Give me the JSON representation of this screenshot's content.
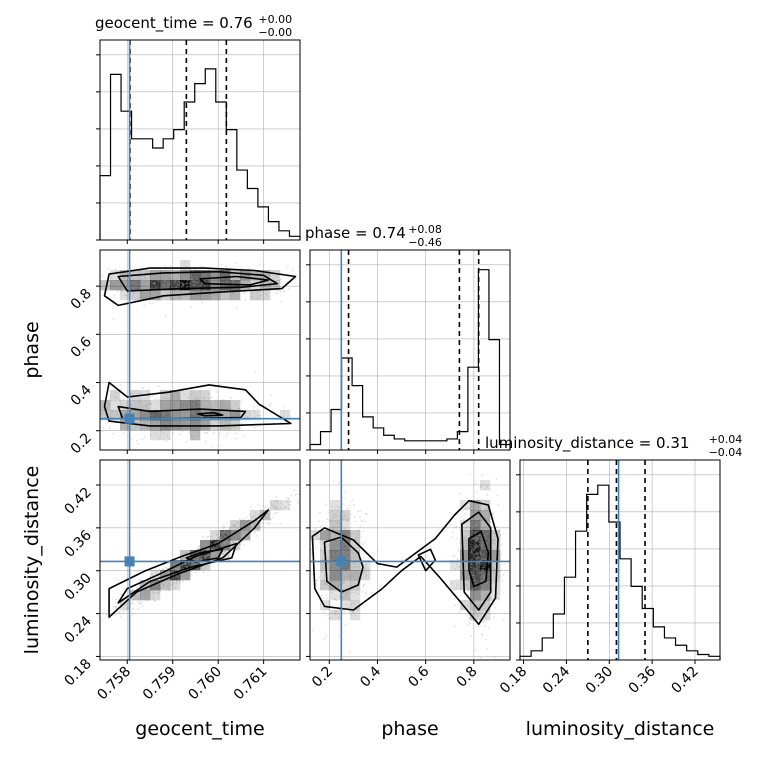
{
  "chart_data": {
    "type": "corner",
    "grid": true,
    "parameters": [
      {
        "name": "geocent_time",
        "label": "geocent_time",
        "truth": 0.75805,
        "range": [
          0.7574,
          0.7618
        ],
        "ticks": [
          0.758,
          0.759,
          0.76,
          0.761
        ],
        "tick_labels": [
          "0.758",
          "0.759",
          "0.760",
          "0.761"
        ],
        "title": "geocent_time = 0.76",
        "title_sup": "+0.00",
        "title_sub": "−0.00",
        "quantiles": [
          0.75806,
          0.7593,
          0.76018
        ],
        "hist": [
          0.35,
          0.9,
          0.7,
          0.55,
          0.55,
          0.5,
          0.55,
          0.6,
          0.75,
          0.85,
          0.93,
          0.75,
          0.6,
          0.38,
          0.28,
          0.18,
          0.1,
          0.05,
          0.02
        ]
      },
      {
        "name": "phase",
        "label": "phase",
        "truth": 0.25,
        "range": [
          0.12,
          0.95
        ],
        "ticks": [
          0.2,
          0.4,
          0.6,
          0.8
        ],
        "tick_labels": [
          "0.2",
          "0.4",
          "0.6",
          "0.8"
        ],
        "title": "phase = 0.74",
        "title_sup": "+0.08",
        "title_sub": "−0.46",
        "quantiles": [
          0.28,
          0.74,
          0.82
        ],
        "hist": [
          0.03,
          0.1,
          0.22,
          0.5,
          0.35,
          0.18,
          0.12,
          0.08,
          0.06,
          0.05,
          0.05,
          0.05,
          0.05,
          0.06,
          0.1,
          0.45,
          0.98,
          0.6,
          0.03
        ]
      },
      {
        "name": "luminosity_distance",
        "label": "luminosity_distance",
        "truth": 0.313,
        "range": [
          0.175,
          0.455
        ],
        "ticks": [
          0.18,
          0.24,
          0.3,
          0.36,
          0.42
        ],
        "tick_labels": [
          "0.18",
          "0.24",
          "0.30",
          "0.36",
          "0.42"
        ],
        "title": "luminosity_distance = 0.31",
        "title_sup": "+0.04",
        "title_sub": "−0.04",
        "quantiles": [
          0.27,
          0.31,
          0.35
        ],
        "hist": [
          0.02,
          0.05,
          0.12,
          0.25,
          0.45,
          0.7,
          0.9,
          0.95,
          0.75,
          0.55,
          0.4,
          0.28,
          0.18,
          0.12,
          0.08,
          0.05,
          0.03,
          0.02
        ]
      }
    ],
    "pairs": [
      {
        "x": "geocent_time",
        "y": "phase",
        "modes": [
          {
            "cx": 0.7594,
            "cy": 0.81,
            "sx": 0.0011,
            "sy": 0.035,
            "rho": 0.0,
            "w": 0.52
          },
          {
            "cx": 0.759,
            "cy": 0.27,
            "sx": 0.0011,
            "sy": 0.05,
            "rho": 0.0,
            "w": 0.48
          }
        ],
        "contours": [
          [
            [
              0.7576,
              0.85
            ],
            [
              0.7585,
              0.875
            ],
            [
              0.7597,
              0.875
            ],
            [
              0.7608,
              0.865
            ],
            [
              0.7617,
              0.84
            ],
            [
              0.7614,
              0.79
            ],
            [
              0.76,
              0.775
            ],
            [
              0.7588,
              0.76
            ],
            [
              0.7578,
              0.72
            ],
            [
              0.7575,
              0.76
            ],
            [
              0.7576,
              0.85
            ]
          ],
          [
            [
              0.7578,
              0.84
            ],
            [
              0.7588,
              0.855
            ],
            [
              0.76,
              0.86
            ],
            [
              0.761,
              0.845
            ],
            [
              0.7613,
              0.81
            ],
            [
              0.7605,
              0.795
            ],
            [
              0.7592,
              0.79
            ],
            [
              0.758,
              0.78
            ],
            [
              0.7578,
              0.84
            ]
          ],
          [
            [
              0.7596,
              0.83
            ],
            [
              0.7604,
              0.84
            ],
            [
              0.7611,
              0.825
            ],
            [
              0.7607,
              0.805
            ],
            [
              0.7597,
              0.81
            ],
            [
              0.7596,
              0.83
            ]
          ],
          [
            [
              0.7576,
              0.4
            ],
            [
              0.758,
              0.34
            ],
            [
              0.7589,
              0.36
            ],
            [
              0.7598,
              0.39
            ],
            [
              0.7606,
              0.37
            ],
            [
              0.7609,
              0.31
            ],
            [
              0.7616,
              0.23
            ],
            [
              0.76,
              0.22
            ],
            [
              0.7585,
              0.22
            ],
            [
              0.7576,
              0.24
            ],
            [
              0.7575,
              0.3
            ],
            [
              0.7576,
              0.4
            ]
          ],
          [
            [
              0.7578,
              0.3
            ],
            [
              0.7585,
              0.28
            ],
            [
              0.7596,
              0.29
            ],
            [
              0.7606,
              0.28
            ],
            [
              0.7605,
              0.255
            ],
            [
              0.759,
              0.25
            ],
            [
              0.7579,
              0.25
            ],
            [
              0.7578,
              0.3
            ]
          ],
          [
            [
              0.75955,
              0.27
            ],
            [
              0.7599,
              0.275
            ],
            [
              0.7601,
              0.265
            ],
            [
              0.7597,
              0.262
            ],
            [
              0.75955,
              0.27
            ]
          ]
        ]
      },
      {
        "x": "geocent_time",
        "y": "luminosity_distance",
        "modes": [
          {
            "cx": 0.7596,
            "cy": 0.32,
            "sx": 0.00085,
            "sy": 0.035,
            "rho": 0.97,
            "w": 1.0
          }
        ],
        "contours": [
          [
            [
              0.7576,
              0.235
            ],
            [
              0.7576,
              0.275
            ],
            [
              0.7584,
              0.3
            ],
            [
              0.7592,
              0.32
            ],
            [
              0.76,
              0.338
            ],
            [
              0.7608,
              0.37
            ],
            [
              0.7611,
              0.385
            ],
            [
              0.7608,
              0.36
            ],
            [
              0.7601,
              0.318
            ],
            [
              0.7591,
              0.295
            ],
            [
              0.7582,
              0.27
            ],
            [
              0.7576,
              0.235
            ]
          ],
          [
            [
              0.7578,
              0.255
            ],
            [
              0.758,
              0.275
            ],
            [
              0.7587,
              0.295
            ],
            [
              0.7595,
              0.32
            ],
            [
              0.7604,
              0.338
            ],
            [
              0.7603,
              0.318
            ],
            [
              0.7594,
              0.305
            ],
            [
              0.7585,
              0.285
            ],
            [
              0.7578,
              0.255
            ]
          ],
          [
            [
              0.7593,
              0.318
            ],
            [
              0.7596,
              0.325
            ],
            [
              0.7601,
              0.33
            ],
            [
              0.76,
              0.318
            ],
            [
              0.7595,
              0.312
            ],
            [
              0.7593,
              0.318
            ]
          ]
        ]
      },
      {
        "x": "phase",
        "y": "luminosity_distance",
        "modes": [
          {
            "cx": 0.82,
            "cy": 0.315,
            "sx": 0.04,
            "sy": 0.04,
            "rho": 0.0,
            "w": 0.6
          },
          {
            "cx": 0.25,
            "cy": 0.315,
            "sx": 0.05,
            "sy": 0.04,
            "rho": 0.0,
            "w": 0.4
          }
        ],
        "contours": [
          [
            [
              0.13,
              0.348
            ],
            [
              0.18,
              0.36
            ],
            [
              0.3,
              0.343
            ],
            [
              0.4,
              0.31
            ],
            [
              0.48,
              0.305
            ],
            [
              0.56,
              0.325
            ],
            [
              0.64,
              0.345
            ],
            [
              0.72,
              0.378
            ],
            [
              0.78,
              0.398
            ],
            [
              0.86,
              0.392
            ],
            [
              0.9,
              0.345
            ],
            [
              0.89,
              0.262
            ],
            [
              0.82,
              0.225
            ],
            [
              0.74,
              0.258
            ],
            [
              0.66,
              0.29
            ],
            [
              0.58,
              0.32
            ],
            [
              0.5,
              0.3
            ],
            [
              0.42,
              0.275
            ],
            [
              0.3,
              0.245
            ],
            [
              0.18,
              0.25
            ],
            [
              0.14,
              0.275
            ],
            [
              0.13,
              0.348
            ]
          ],
          [
            [
              0.18,
              0.34
            ],
            [
              0.25,
              0.347
            ],
            [
              0.32,
              0.325
            ],
            [
              0.34,
              0.305
            ],
            [
              0.32,
              0.28
            ],
            [
              0.25,
              0.27
            ],
            [
              0.19,
              0.285
            ],
            [
              0.18,
              0.34
            ]
          ],
          [
            [
              0.75,
              0.365
            ],
            [
              0.82,
              0.382
            ],
            [
              0.87,
              0.36
            ],
            [
              0.87,
              0.27
            ],
            [
              0.82,
              0.245
            ],
            [
              0.76,
              0.27
            ],
            [
              0.75,
              0.365
            ]
          ],
          [
            [
              0.78,
              0.345
            ],
            [
              0.83,
              0.355
            ],
            [
              0.86,
              0.325
            ],
            [
              0.85,
              0.285
            ],
            [
              0.8,
              0.278
            ],
            [
              0.78,
              0.3
            ],
            [
              0.78,
              0.345
            ]
          ],
          [
            [
              0.57,
              0.322
            ],
            [
              0.62,
              0.33
            ],
            [
              0.64,
              0.315
            ],
            [
              0.6,
              0.3
            ],
            [
              0.57,
              0.322
            ]
          ]
        ]
      }
    ],
    "colors": {
      "truth": "#4682b4",
      "line": "#000000",
      "grid": "#b0b0b0",
      "density": "#000000",
      "scatter": "#9a9a9a"
    }
  }
}
